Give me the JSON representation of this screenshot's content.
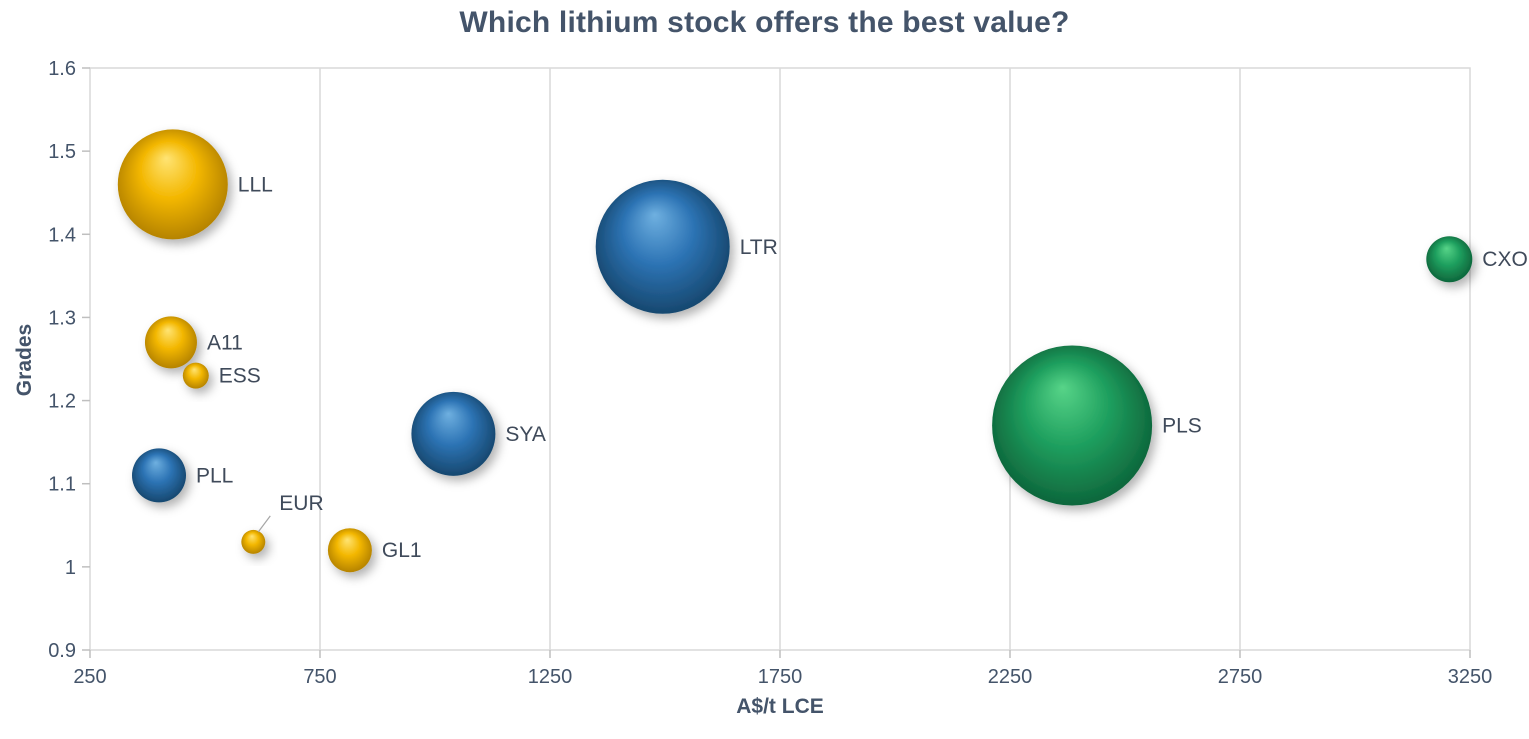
{
  "title": "Which lithium stock offers the best value?",
  "chart_data": {
    "type": "scatter",
    "subtype": "bubble",
    "title": "Which lithium stock offers the best value?",
    "xlabel": "A$/t LCE",
    "ylabel": "Grades",
    "xlim": [
      250,
      3250
    ],
    "ylim": [
      0.9,
      1.6
    ],
    "x_ticks": [
      250,
      750,
      1250,
      1750,
      2250,
      2750,
      3250
    ],
    "y_ticks": [
      0.9,
      1,
      1.1,
      1.2,
      1.3,
      1.4,
      1.5,
      1.6
    ],
    "grid": "vertical-only",
    "legend": "none",
    "points": [
      {
        "label": "LLL",
        "x": 430,
        "y": 1.46,
        "r": 55,
        "color": "gold"
      },
      {
        "label": "A11",
        "x": 426,
        "y": 1.27,
        "r": 26,
        "color": "gold"
      },
      {
        "label": "ESS",
        "x": 480,
        "y": 1.23,
        "r": 13,
        "color": "gold"
      },
      {
        "label": "PLL",
        "x": 400,
        "y": 1.11,
        "r": 27,
        "color": "blue"
      },
      {
        "label": "EUR",
        "x": 605,
        "y": 1.03,
        "r": 12,
        "color": "gold",
        "leader": true
      },
      {
        "label": "GL1",
        "x": 815,
        "y": 1.02,
        "r": 22,
        "color": "gold"
      },
      {
        "label": "SYA",
        "x": 1040,
        "y": 1.16,
        "r": 42,
        "color": "blue"
      },
      {
        "label": "LTR",
        "x": 1495,
        "y": 1.385,
        "r": 67,
        "color": "blue"
      },
      {
        "label": "PLS",
        "x": 2385,
        "y": 1.17,
        "r": 80,
        "color": "green"
      },
      {
        "label": "CXO",
        "x": 3205,
        "y": 1.37,
        "r": 23,
        "color": "green"
      }
    ],
    "colors": {
      "gold": {
        "light": "#ffe474",
        "mid": "#f3b700",
        "dark": "#a87800"
      },
      "blue": {
        "light": "#6fb0e0",
        "mid": "#2d74b5",
        "dark": "#123e60"
      },
      "green": {
        "light": "#57d488",
        "mid": "#1fa05f",
        "dark": "#0a5a34"
      }
    },
    "axis_color": "#44546a",
    "grid_color": "#d9d9d9",
    "axis_line_color": "#bfbfbf",
    "leader_line_color": "#a6a6a6"
  }
}
